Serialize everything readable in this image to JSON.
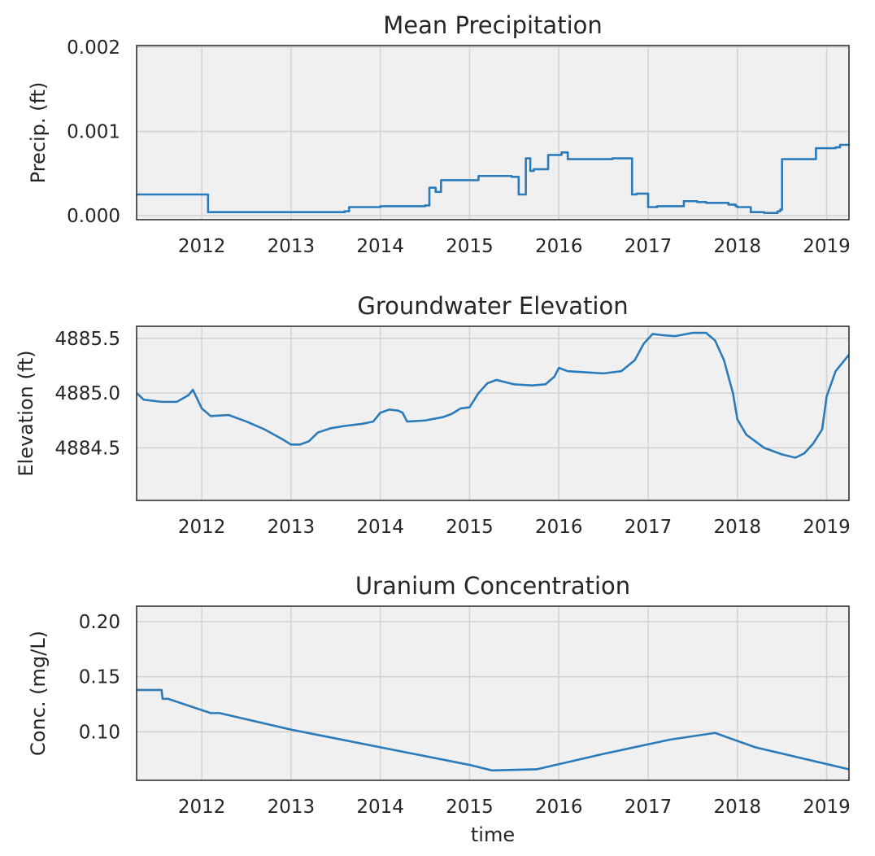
{
  "figure": {
    "background": "#ffffff",
    "plot_background": "#f0f0f0",
    "grid_color": "#d2d2d2",
    "spine_color": "#333333",
    "line_color": "#2b7bba",
    "text_color": "#262626"
  },
  "chart_data": [
    {
      "type": "line",
      "title": "Mean Precipitation",
      "xlabel": "",
      "ylabel": "Precip. (ft)",
      "grid": true,
      "x_is_date": true,
      "xlim": [
        2011.27,
        2019.25
      ],
      "ylim": [
        -5e-05,
        0.00202
      ],
      "xticks": [
        2012,
        2013,
        2014,
        2015,
        2016,
        2017,
        2018,
        2019
      ],
      "xtick_labels": [
        "2012",
        "2013",
        "2014",
        "2015",
        "2016",
        "2017",
        "2018",
        "2019"
      ],
      "yticks": [
        0.0,
        0.001,
        0.002
      ],
      "ytick_labels": [
        "0.000",
        "0.001",
        "0.002"
      ],
      "series": [
        {
          "step": true,
          "x": [
            2011.27,
            2011.62,
            2012.07,
            2012.9,
            2013.6,
            2013.65,
            2014.0,
            2014.35,
            2014.5,
            2014.55,
            2014.62,
            2014.68,
            2015.07,
            2015.1,
            2015.47,
            2015.55,
            2015.57,
            2015.63,
            2015.68,
            2015.72,
            2015.85,
            2015.88,
            2016.03,
            2016.1,
            2016.32,
            2016.6,
            2016.82,
            2016.87,
            2017.0,
            2017.1,
            2017.4,
            2017.55,
            2017.65,
            2017.9,
            2017.98,
            2018.0,
            2018.15,
            2018.3,
            2018.45,
            2018.48,
            2018.5,
            2018.75,
            2018.88,
            2019.1,
            2019.15,
            2019.25
          ],
          "y": [
            0.00025,
            0.00025,
            4e-05,
            4e-05,
            5e-05,
            0.0001,
            0.00011,
            0.00011,
            0.00012,
            0.00033,
            0.00028,
            0.00042,
            0.00042,
            0.00047,
            0.00046,
            0.00025,
            0.00025,
            0.00068,
            0.00053,
            0.00055,
            0.00055,
            0.00072,
            0.00075,
            0.00067,
            0.00067,
            0.00068,
            0.00025,
            0.00026,
            0.0001,
            0.00011,
            0.00017,
            0.00016,
            0.00015,
            0.00013,
            0.00011,
            0.0001,
            4e-05,
            3e-05,
            5e-05,
            7e-05,
            0.00067,
            0.00067,
            0.0008,
            0.00081,
            0.00084,
            0.00083
          ]
        }
      ]
    },
    {
      "type": "line",
      "title": "Groundwater Elevation",
      "xlabel": "",
      "ylabel": "Elevation (ft)",
      "grid": true,
      "x_is_date": true,
      "xlim": [
        2011.27,
        2019.25
      ],
      "ylim": [
        4884.02,
        4885.61
      ],
      "xticks": [
        2012,
        2013,
        2014,
        2015,
        2016,
        2017,
        2018,
        2019
      ],
      "xtick_labels": [
        "2012",
        "2013",
        "2014",
        "2015",
        "2016",
        "2017",
        "2018",
        "2019"
      ],
      "yticks": [
        4884.5,
        4885.0,
        4885.5
      ],
      "ytick_labels": [
        "4884.5",
        "4885.0",
        "4885.5"
      ],
      "series": [
        {
          "x": [
            2011.27,
            2011.35,
            2011.55,
            2011.72,
            2011.85,
            2011.9,
            2011.93,
            2012.0,
            2012.1,
            2012.3,
            2012.5,
            2012.7,
            2012.9,
            2013.0,
            2013.1,
            2013.2,
            2013.3,
            2013.45,
            2013.6,
            2013.8,
            2013.92,
            2014.0,
            2014.1,
            2014.2,
            2014.25,
            2014.3,
            2014.5,
            2014.7,
            2014.8,
            2014.9,
            2015.0,
            2015.1,
            2015.2,
            2015.3,
            2015.5,
            2015.7,
            2015.85,
            2015.95,
            2016.0,
            2016.1,
            2016.3,
            2016.5,
            2016.7,
            2016.85,
            2016.95,
            2017.05,
            2017.15,
            2017.3,
            2017.5,
            2017.65,
            2017.75,
            2017.85,
            2017.95,
            2018.0,
            2018.1,
            2018.2,
            2018.3,
            2018.5,
            2018.65,
            2018.75,
            2018.85,
            2018.95,
            2019.0,
            2019.1,
            2019.25
          ],
          "y": [
            4885.0,
            4884.94,
            4884.92,
            4884.92,
            4884.98,
            4885.03,
            4884.98,
            4884.86,
            4884.79,
            4884.8,
            4884.74,
            4884.67,
            4884.58,
            4884.53,
            4884.53,
            4884.56,
            4884.64,
            4884.68,
            4884.7,
            4884.72,
            4884.74,
            4884.82,
            4884.85,
            4884.84,
            4884.82,
            4884.74,
            4884.75,
            4884.78,
            4884.81,
            4884.86,
            4884.87,
            4885.0,
            4885.09,
            4885.12,
            4885.08,
            4885.07,
            4885.08,
            4885.15,
            4885.23,
            4885.2,
            4885.19,
            4885.18,
            4885.2,
            4885.3,
            4885.45,
            4885.54,
            4885.53,
            4885.52,
            4885.55,
            4885.55,
            4885.48,
            4885.3,
            4885.0,
            4884.76,
            4884.62,
            4884.56,
            4884.5,
            4884.44,
            4884.41,
            4884.45,
            4884.54,
            4884.67,
            4884.97,
            4885.2,
            4885.35
          ]
        }
      ]
    },
    {
      "type": "line",
      "title": "Uranium Concentration",
      "xlabel": "time",
      "ylabel": "Conc. (mg/L)",
      "grid": true,
      "x_is_date": true,
      "xlim": [
        2011.27,
        2019.25
      ],
      "ylim": [
        0.056,
        0.214
      ],
      "xticks": [
        2012,
        2013,
        2014,
        2015,
        2016,
        2017,
        2018,
        2019
      ],
      "xtick_labels": [
        "2012",
        "2013",
        "2014",
        "2015",
        "2016",
        "2017",
        "2018",
        "2019"
      ],
      "yticks": [
        0.1,
        0.15,
        0.2
      ],
      "ytick_labels": [
        "0.10",
        "0.15",
        "0.20"
      ],
      "series": [
        {
          "x": [
            2011.27,
            2011.55,
            2011.56,
            2011.62,
            2012.1,
            2012.2,
            2013.0,
            2014.0,
            2015.0,
            2015.25,
            2015.75,
            2016.5,
            2017.25,
            2017.75,
            2018.2,
            2019.25
          ],
          "y": [
            0.138,
            0.138,
            0.13,
            0.13,
            0.117,
            0.117,
            0.102,
            0.086,
            0.07,
            0.065,
            0.066,
            0.08,
            0.093,
            0.099,
            0.086,
            0.066
          ]
        }
      ]
    }
  ]
}
